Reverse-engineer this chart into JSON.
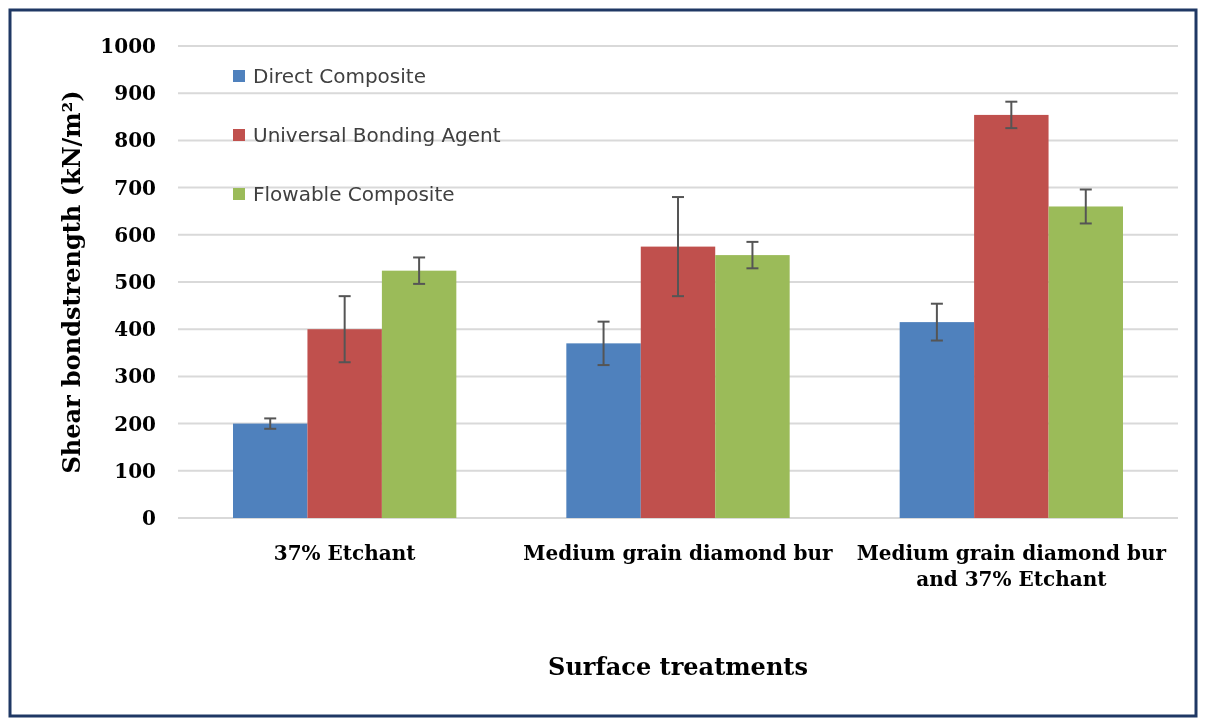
{
  "chart_data": {
    "type": "bar",
    "xlabel": "Surface treatments",
    "ylabel": "Shear bondstrength (kN/m²)",
    "categories": [
      "37% Etchant",
      "Medium grain diamond bur",
      "Medium grain diamond bur and 37% Etchant"
    ],
    "series": [
      {
        "name": "Direct Composite",
        "color": "#4f81bd",
        "values": [
          200,
          370,
          415
        ],
        "errors": [
          11,
          46,
          39
        ]
      },
      {
        "name": "Universal Bonding Agent",
        "color": "#c0504d",
        "values": [
          400,
          575,
          854
        ],
        "errors": [
          70,
          105,
          28
        ]
      },
      {
        "name": "Flowable Composite",
        "color": "#9bbb59",
        "values": [
          524,
          557,
          660
        ],
        "errors": [
          28,
          28,
          36
        ]
      }
    ],
    "ylim": [
      0,
      1000
    ],
    "yticks": [
      0,
      100,
      200,
      300,
      400,
      500,
      600,
      700,
      800,
      900,
      1000
    ],
    "grid": "y",
    "legend": "top left"
  }
}
